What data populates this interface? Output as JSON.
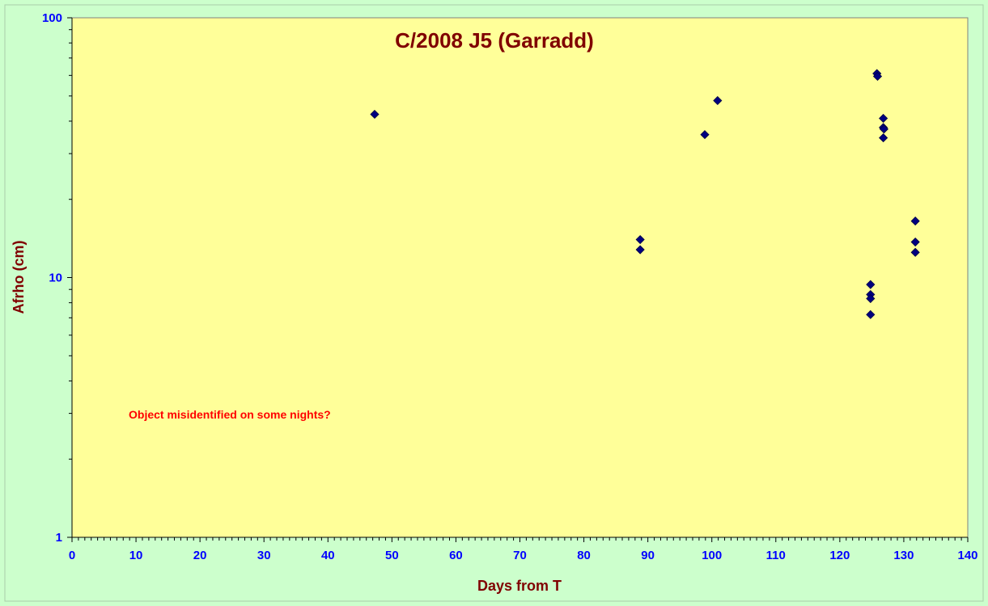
{
  "chart_data": {
    "type": "scatter",
    "title": "C/2008 J5 (Garradd)",
    "xlabel": "Days from T",
    "ylabel": "Afrho (cm)",
    "xlim": [
      0,
      140
    ],
    "ylim": [
      1,
      100
    ],
    "yscale": "log",
    "x_ticks": [
      0,
      10,
      20,
      30,
      40,
      50,
      60,
      70,
      80,
      90,
      100,
      110,
      120,
      130,
      140
    ],
    "y_ticks": [
      1,
      10,
      100
    ],
    "grid": false,
    "legend": "none",
    "annotation": "Object misidentified on some nights?",
    "colors": {
      "background": "#ccffcc",
      "plot_area": "#ffff99",
      "marker": "#000080",
      "title": "#800000",
      "axis_label": "#800000",
      "tick_label": "#0000ff",
      "annotation": "#ff0000"
    },
    "series": [
      {
        "points": [
          {
            "x": 47.3,
            "y": 42.5
          },
          {
            "x": 88.8,
            "y": 14.0
          },
          {
            "x": 88.8,
            "y": 12.8
          },
          {
            "x": 98.9,
            "y": 35.5
          },
          {
            "x": 100.9,
            "y": 48.0
          },
          {
            "x": 124.8,
            "y": 9.4
          },
          {
            "x": 124.8,
            "y": 8.6
          },
          {
            "x": 124.8,
            "y": 8.3
          },
          {
            "x": 124.8,
            "y": 7.2
          },
          {
            "x": 125.8,
            "y": 61.0
          },
          {
            "x": 125.9,
            "y": 59.5
          },
          {
            "x": 126.8,
            "y": 41.0
          },
          {
            "x": 126.8,
            "y": 37.8
          },
          {
            "x": 126.9,
            "y": 37.3
          },
          {
            "x": 126.8,
            "y": 34.5
          },
          {
            "x": 131.8,
            "y": 16.5
          },
          {
            "x": 131.8,
            "y": 13.7
          },
          {
            "x": 131.8,
            "y": 12.5
          }
        ]
      }
    ]
  }
}
